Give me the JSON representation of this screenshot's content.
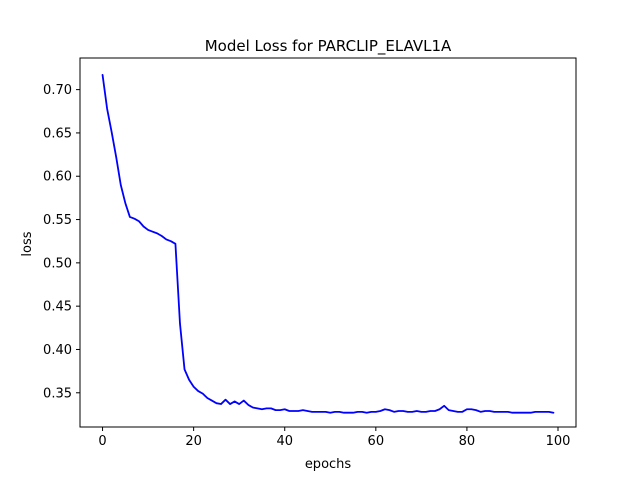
{
  "chart_data": {
    "type": "line",
    "title": "Model Loss for PARCLIP_ELAVL1A",
    "xlabel": "epochs",
    "ylabel": "loss",
    "xlim": [
      -4.95,
      103.95
    ],
    "ylim": [
      0.3105,
      0.7365
    ],
    "xticks": [
      0,
      20,
      40,
      60,
      80,
      100
    ],
    "yticks": [
      0.35,
      0.4,
      0.45,
      0.5,
      0.55,
      0.6,
      0.65,
      0.7
    ],
    "ytick_labels": [
      "0.35",
      "0.40",
      "0.45",
      "0.50",
      "0.55",
      "0.60",
      "0.65",
      "0.70"
    ],
    "grid": false,
    "series": [
      {
        "color": "#0000ff",
        "x": [
          0,
          1,
          2,
          3,
          4,
          5,
          6,
          7,
          8,
          9,
          10,
          11,
          12,
          13,
          14,
          15,
          16,
          17,
          18,
          19,
          20,
          21,
          22,
          23,
          24,
          25,
          26,
          27,
          28,
          29,
          30,
          31,
          32,
          33,
          34,
          35,
          36,
          37,
          38,
          39,
          40,
          41,
          42,
          43,
          44,
          45,
          46,
          47,
          48,
          49,
          50,
          51,
          52,
          53,
          54,
          55,
          56,
          57,
          58,
          59,
          60,
          61,
          62,
          63,
          64,
          65,
          66,
          67,
          68,
          69,
          70,
          71,
          72,
          73,
          74,
          75,
          76,
          77,
          78,
          79,
          80,
          81,
          82,
          83,
          84,
          85,
          86,
          87,
          88,
          89,
          90,
          91,
          92,
          93,
          94,
          95,
          96,
          97,
          98,
          99
        ],
        "y": [
          0.717,
          0.678,
          0.651,
          0.622,
          0.59,
          0.569,
          0.553,
          0.551,
          0.548,
          0.542,
          0.538,
          0.536,
          0.534,
          0.531,
          0.527,
          0.525,
          0.522,
          0.43,
          0.377,
          0.365,
          0.357,
          0.352,
          0.349,
          0.344,
          0.341,
          0.338,
          0.337,
          0.342,
          0.337,
          0.34,
          0.337,
          0.341,
          0.336,
          0.333,
          0.332,
          0.331,
          0.332,
          0.332,
          0.33,
          0.33,
          0.331,
          0.329,
          0.329,
          0.329,
          0.33,
          0.329,
          0.328,
          0.328,
          0.328,
          0.328,
          0.327,
          0.328,
          0.328,
          0.327,
          0.327,
          0.327,
          0.328,
          0.328,
          0.327,
          0.328,
          0.328,
          0.329,
          0.331,
          0.33,
          0.328,
          0.329,
          0.329,
          0.328,
          0.328,
          0.329,
          0.328,
          0.328,
          0.329,
          0.329,
          0.331,
          0.335,
          0.33,
          0.329,
          0.328,
          0.328,
          0.331,
          0.331,
          0.33,
          0.328,
          0.329,
          0.329,
          0.328,
          0.328,
          0.328,
          0.328,
          0.327,
          0.327,
          0.327,
          0.327,
          0.327,
          0.328,
          0.328,
          0.328,
          0.328,
          0.327
        ]
      }
    ]
  }
}
